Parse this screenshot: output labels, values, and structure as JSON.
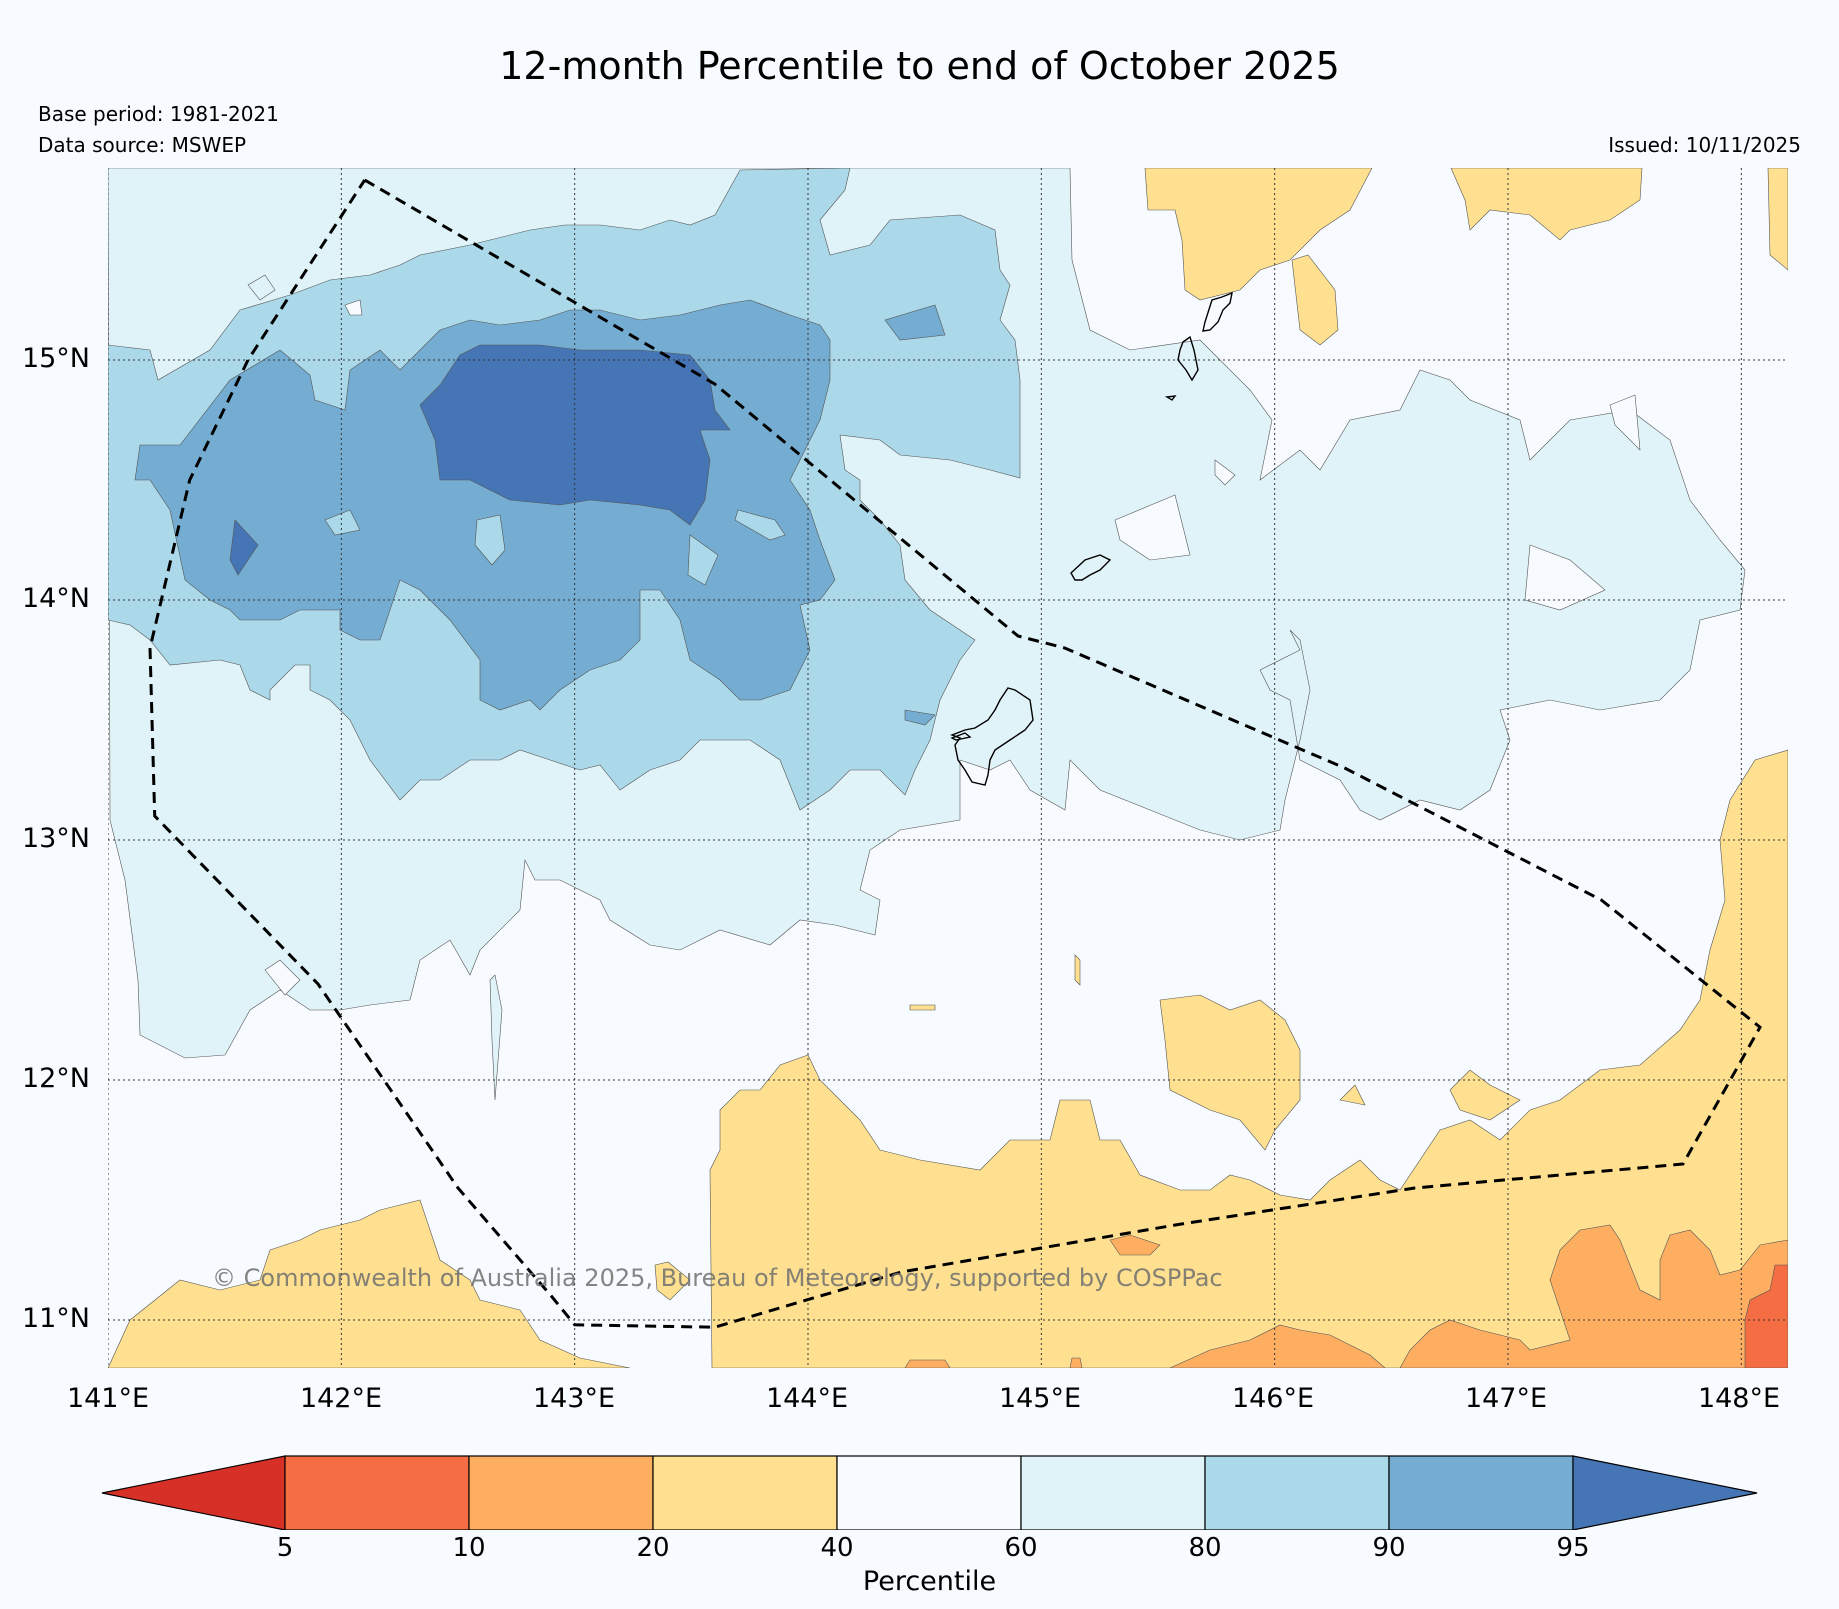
{
  "title": "12-month Percentile to end of October 2025",
  "base_period": "Base period: 1981-2021",
  "data_source": "Data source: MSWEP",
  "issued": "Issued: 10/11/2025",
  "copyright": "© Commonwealth of Australia 2025, Bureau of Meteorology, supported by COSPPac",
  "map": {
    "lon_range": [
      141.0,
      148.2
    ],
    "lat_range": [
      10.8,
      15.8
    ],
    "lat_labels": [
      {
        "value": 15,
        "text": "15°N"
      },
      {
        "value": 14,
        "text": "14°N"
      },
      {
        "value": 13,
        "text": "13°N"
      },
      {
        "value": 12,
        "text": "12°N"
      },
      {
        "value": 11,
        "text": "11°N"
      }
    ],
    "lon_labels": [
      {
        "value": 141,
        "text": "141°E"
      },
      {
        "value": 142,
        "text": "142°E"
      },
      {
        "value": 143,
        "text": "143°E"
      },
      {
        "value": 144,
        "text": "144°E"
      },
      {
        "value": 145,
        "text": "145°E"
      },
      {
        "value": 146,
        "text": "146°E"
      },
      {
        "value": 147,
        "text": "147°E"
      },
      {
        "value": 148,
        "text": "148°E"
      }
    ],
    "eez_boundary": [
      [
        142.1,
        15.75
      ],
      [
        143.6,
        14.9
      ],
      [
        144.9,
        13.85
      ],
      [
        145.1,
        13.8
      ],
      [
        146.3,
        13.3
      ],
      [
        147.4,
        12.75
      ],
      [
        148.08,
        12.22
      ],
      [
        147.75,
        11.65
      ],
      [
        146.6,
        11.55
      ],
      [
        145.6,
        11.4
      ],
      [
        144.4,
        11.2
      ],
      [
        143.6,
        10.97
      ],
      [
        143.0,
        10.98
      ],
      [
        142.9,
        11.1
      ],
      [
        142.5,
        11.55
      ],
      [
        141.9,
        12.4
      ],
      [
        141.2,
        13.1
      ],
      [
        141.18,
        13.8
      ],
      [
        141.35,
        14.5
      ],
      [
        141.6,
        15.0
      ],
      [
        142.1,
        15.75
      ]
    ]
  },
  "legend": {
    "title": "Percentile",
    "ticks": [
      "5",
      "10",
      "20",
      "40",
      "60",
      "80",
      "90",
      "95"
    ],
    "colors": [
      "#d73027",
      "#f46d43",
      "#fdae61",
      "#fee090",
      "#f7fbff",
      "#e0f3f8",
      "#abd9e9",
      "#74add1",
      "#4575b4"
    ]
  }
}
